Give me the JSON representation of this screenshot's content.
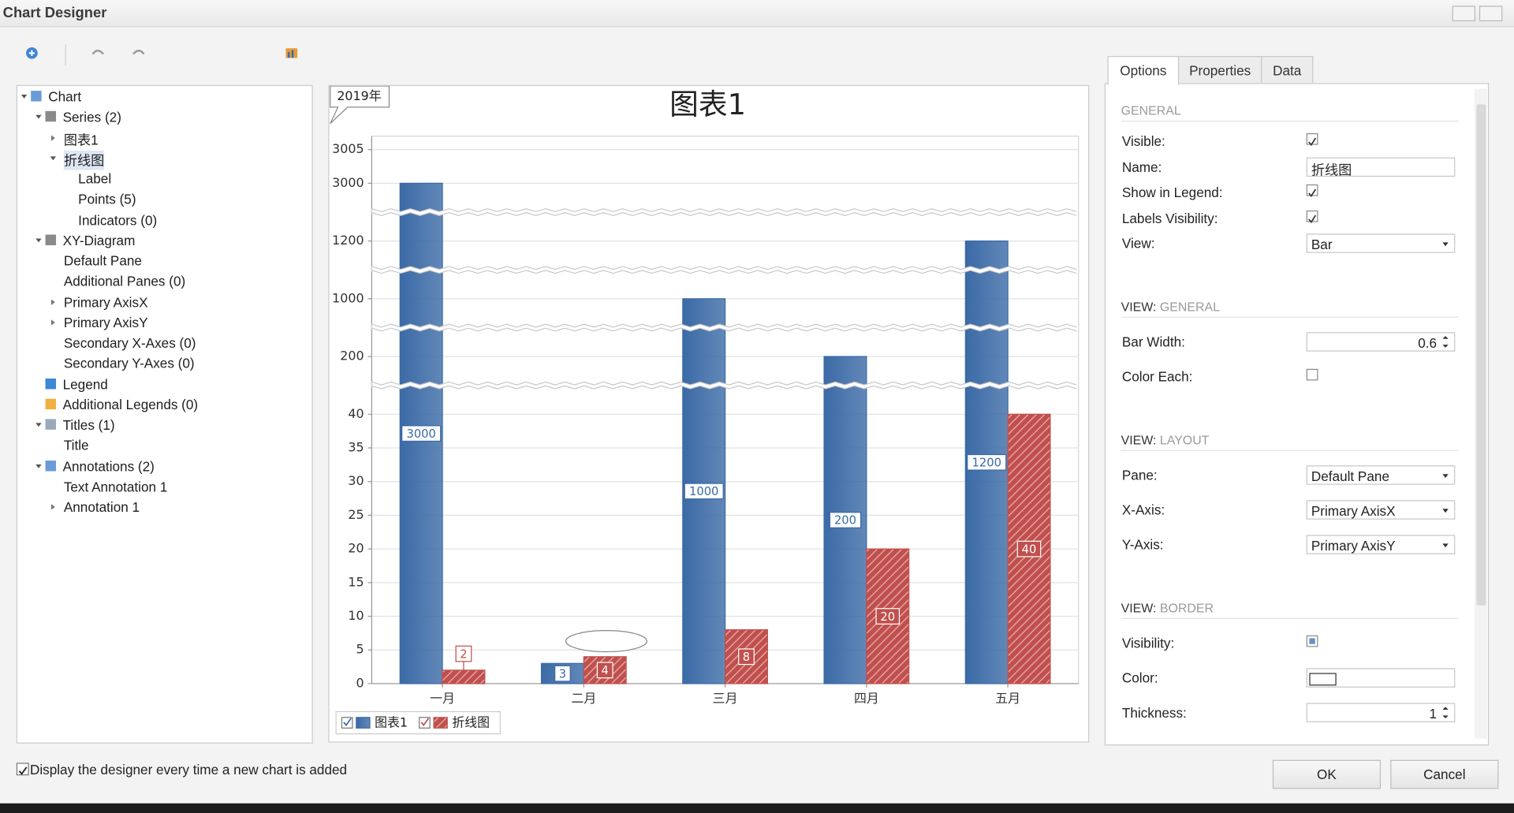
{
  "window": {
    "title": "Chart Designer"
  },
  "tree": [
    {
      "label": "Chart",
      "children": [
        {
          "label": "Series (2)",
          "children": [
            {
              "label": "图表1",
              "collapsed": true
            },
            {
              "label": "折线图",
              "selected": true,
              "children": [
                {
                  "label": "Label"
                },
                {
                  "label": "Points (5)"
                },
                {
                  "label": "Indicators (0)"
                }
              ]
            }
          ]
        },
        {
          "label": "XY-Diagram",
          "children": [
            {
              "label": "Default Pane"
            },
            {
              "label": "Additional Panes (0)"
            },
            {
              "label": "Primary AxisX",
              "collapsed": true
            },
            {
              "label": "Primary AxisY",
              "collapsed": true
            },
            {
              "label": "Secondary X-Axes (0)"
            },
            {
              "label": "Secondary Y-Axes (0)"
            }
          ]
        },
        {
          "label": "Legend"
        },
        {
          "label": "Additional Legends (0)"
        },
        {
          "label": "Titles (1)",
          "children": [
            {
              "label": "Title"
            }
          ]
        },
        {
          "label": "Annotations (2)",
          "children": [
            {
              "label": "Text Annotation 1"
            },
            {
              "label": "Annotation 1",
              "collapsed": true
            }
          ]
        }
      ]
    }
  ],
  "chart_data": {
    "type": "bar",
    "title": "图表1",
    "annotation": "2019年",
    "categories": [
      "一月",
      "二月",
      "三月",
      "四月",
      "五月"
    ],
    "series": [
      {
        "name": "图表1",
        "color": "#3b6aa6",
        "values": [
          3000,
          3,
          1000,
          200,
          1200
        ]
      },
      {
        "name": "折线图",
        "color": "#c0504d",
        "pattern": "hatch",
        "values": [
          2,
          4,
          8,
          20,
          40
        ]
      }
    ],
    "ylim": [
      0,
      3007
    ],
    "yticks": [
      0,
      5,
      10,
      15,
      20,
      25,
      30,
      35,
      40,
      200,
      1000,
      1200,
      3000,
      3005
    ],
    "scale_breaks": [
      [
        44,
        196
      ],
      [
        204,
        996
      ],
      [
        1004,
        1196
      ],
      [
        1204,
        2996
      ]
    ],
    "grid": true,
    "legend": "bottom-left"
  },
  "tabs": {
    "items": [
      "Options",
      "Properties",
      "Data"
    ],
    "active": 0
  },
  "sections": [
    {
      "text": "GENERAL",
      "fields": [
        {
          "label": "Visible:",
          "kind": "checkbox",
          "state": "checked"
        },
        {
          "label": "Name:",
          "kind": "text",
          "value": "折线图"
        },
        {
          "label": "Show in Legend:",
          "kind": "checkbox",
          "state": "checked"
        },
        {
          "label": "Labels Visibility:",
          "kind": "checkbox",
          "state": "checked"
        },
        {
          "label": "View:",
          "kind": "dropdown",
          "value": "Bar"
        }
      ]
    },
    {
      "prefix": "VIEW:",
      "text": "GENERAL",
      "fields": [
        {
          "label": "Bar Width:",
          "kind": "spinner",
          "value": 0.6
        },
        {
          "label": "Color Each:",
          "kind": "checkbox",
          "state": "unchecked"
        }
      ]
    },
    {
      "prefix": "VIEW:",
      "text": "LAYOUT",
      "fields": [
        {
          "label": "Pane:",
          "kind": "dropdown",
          "value": "Default Pane"
        },
        {
          "label": "X-Axis:",
          "kind": "dropdown",
          "value": "Primary AxisX"
        },
        {
          "label": "Y-Axis:",
          "kind": "dropdown",
          "value": "Primary AxisY"
        }
      ]
    },
    {
      "prefix": "VIEW:",
      "text": "BORDER",
      "fields": [
        {
          "label": "Visibility:",
          "kind": "checkbox",
          "state": "indeterminate"
        },
        {
          "label": "Color:",
          "kind": "color",
          "color": "#ffffff"
        },
        {
          "label": "Thickness:",
          "kind": "spinner",
          "value": 1
        }
      ]
    }
  ],
  "footer": {
    "checkbox": "Display the designer every time a new chart is added",
    "checked": true,
    "buttons": [
      "OK",
      "Cancel"
    ]
  }
}
